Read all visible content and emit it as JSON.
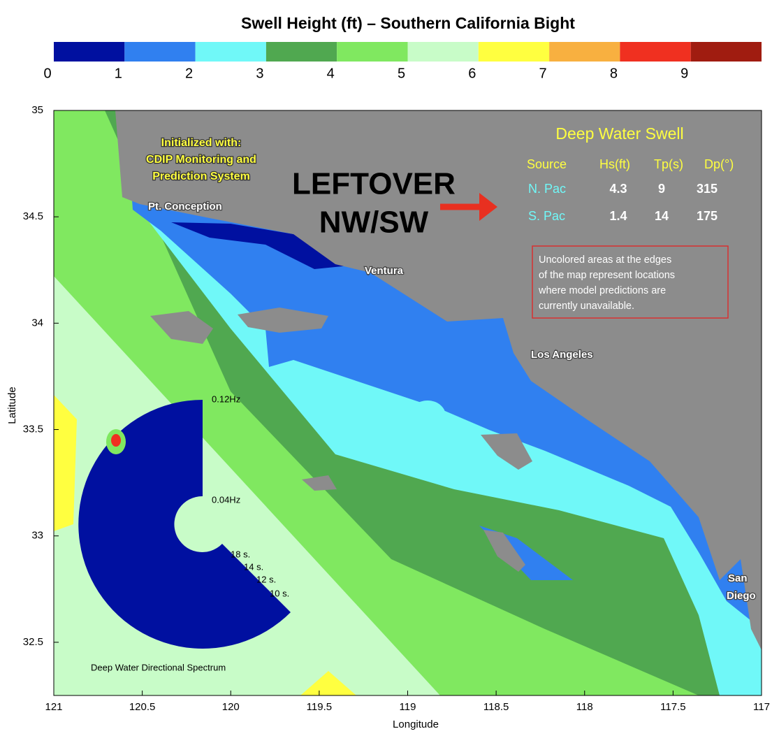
{
  "title": "Swell Height (ft) – Southern California Bight",
  "colorbar": {
    "clim": [
      0,
      10
    ],
    "ticks": [
      0,
      1,
      2,
      3,
      4,
      5,
      6,
      7,
      8,
      9
    ],
    "colors": [
      "#0010a0",
      "#3080f0",
      "#70f8f8",
      "#50a850",
      "#80e860",
      "#c8fcc8",
      "#ffff40",
      "#f8b040",
      "#f03020",
      "#a01c10"
    ]
  },
  "map": {
    "xlabel": "Longitude",
    "ylabel": "Latitude",
    "xlim": [
      121,
      117
    ],
    "ylim": [
      32.25,
      35
    ],
    "xticks": [
      121,
      120.5,
      120,
      119.5,
      119,
      118.5,
      118,
      117.5,
      117
    ],
    "yticks": [
      35,
      34.5,
      34,
      33.5,
      33,
      32.5
    ],
    "land_color": "#8c8c8c"
  },
  "init_note": [
    "Initialized with:",
    "CDIP Monitoring and",
    "Prediction System"
  ],
  "places": {
    "conception": "Pt. Conception",
    "ventura": "Ventura",
    "la": "Los Angeles",
    "sd": [
      "San",
      "Diego"
    ]
  },
  "callout": [
    "LEFTOVER",
    "NW/SW"
  ],
  "swell_table": {
    "title": "Deep Water Swell",
    "headers": [
      "Source",
      "Hs(ft)",
      "Tp(s)",
      "Dp(°)"
    ],
    "rows": [
      [
        "N. Pac",
        4.3,
        9,
        315
      ],
      [
        "S. Pac",
        1.4,
        14,
        175
      ]
    ]
  },
  "note": [
    "Uncolored areas at the edges",
    "of the map represent locations",
    "where model predictions are",
    "currently unavailable."
  ],
  "spectrum": {
    "title": "Deep Water Directional Spectrum",
    "freq_labels": [
      "0.12Hz",
      "0.04Hz"
    ],
    "period_labels": [
      "18 s.",
      "14 s.",
      "12 s.",
      "10 s."
    ]
  }
}
